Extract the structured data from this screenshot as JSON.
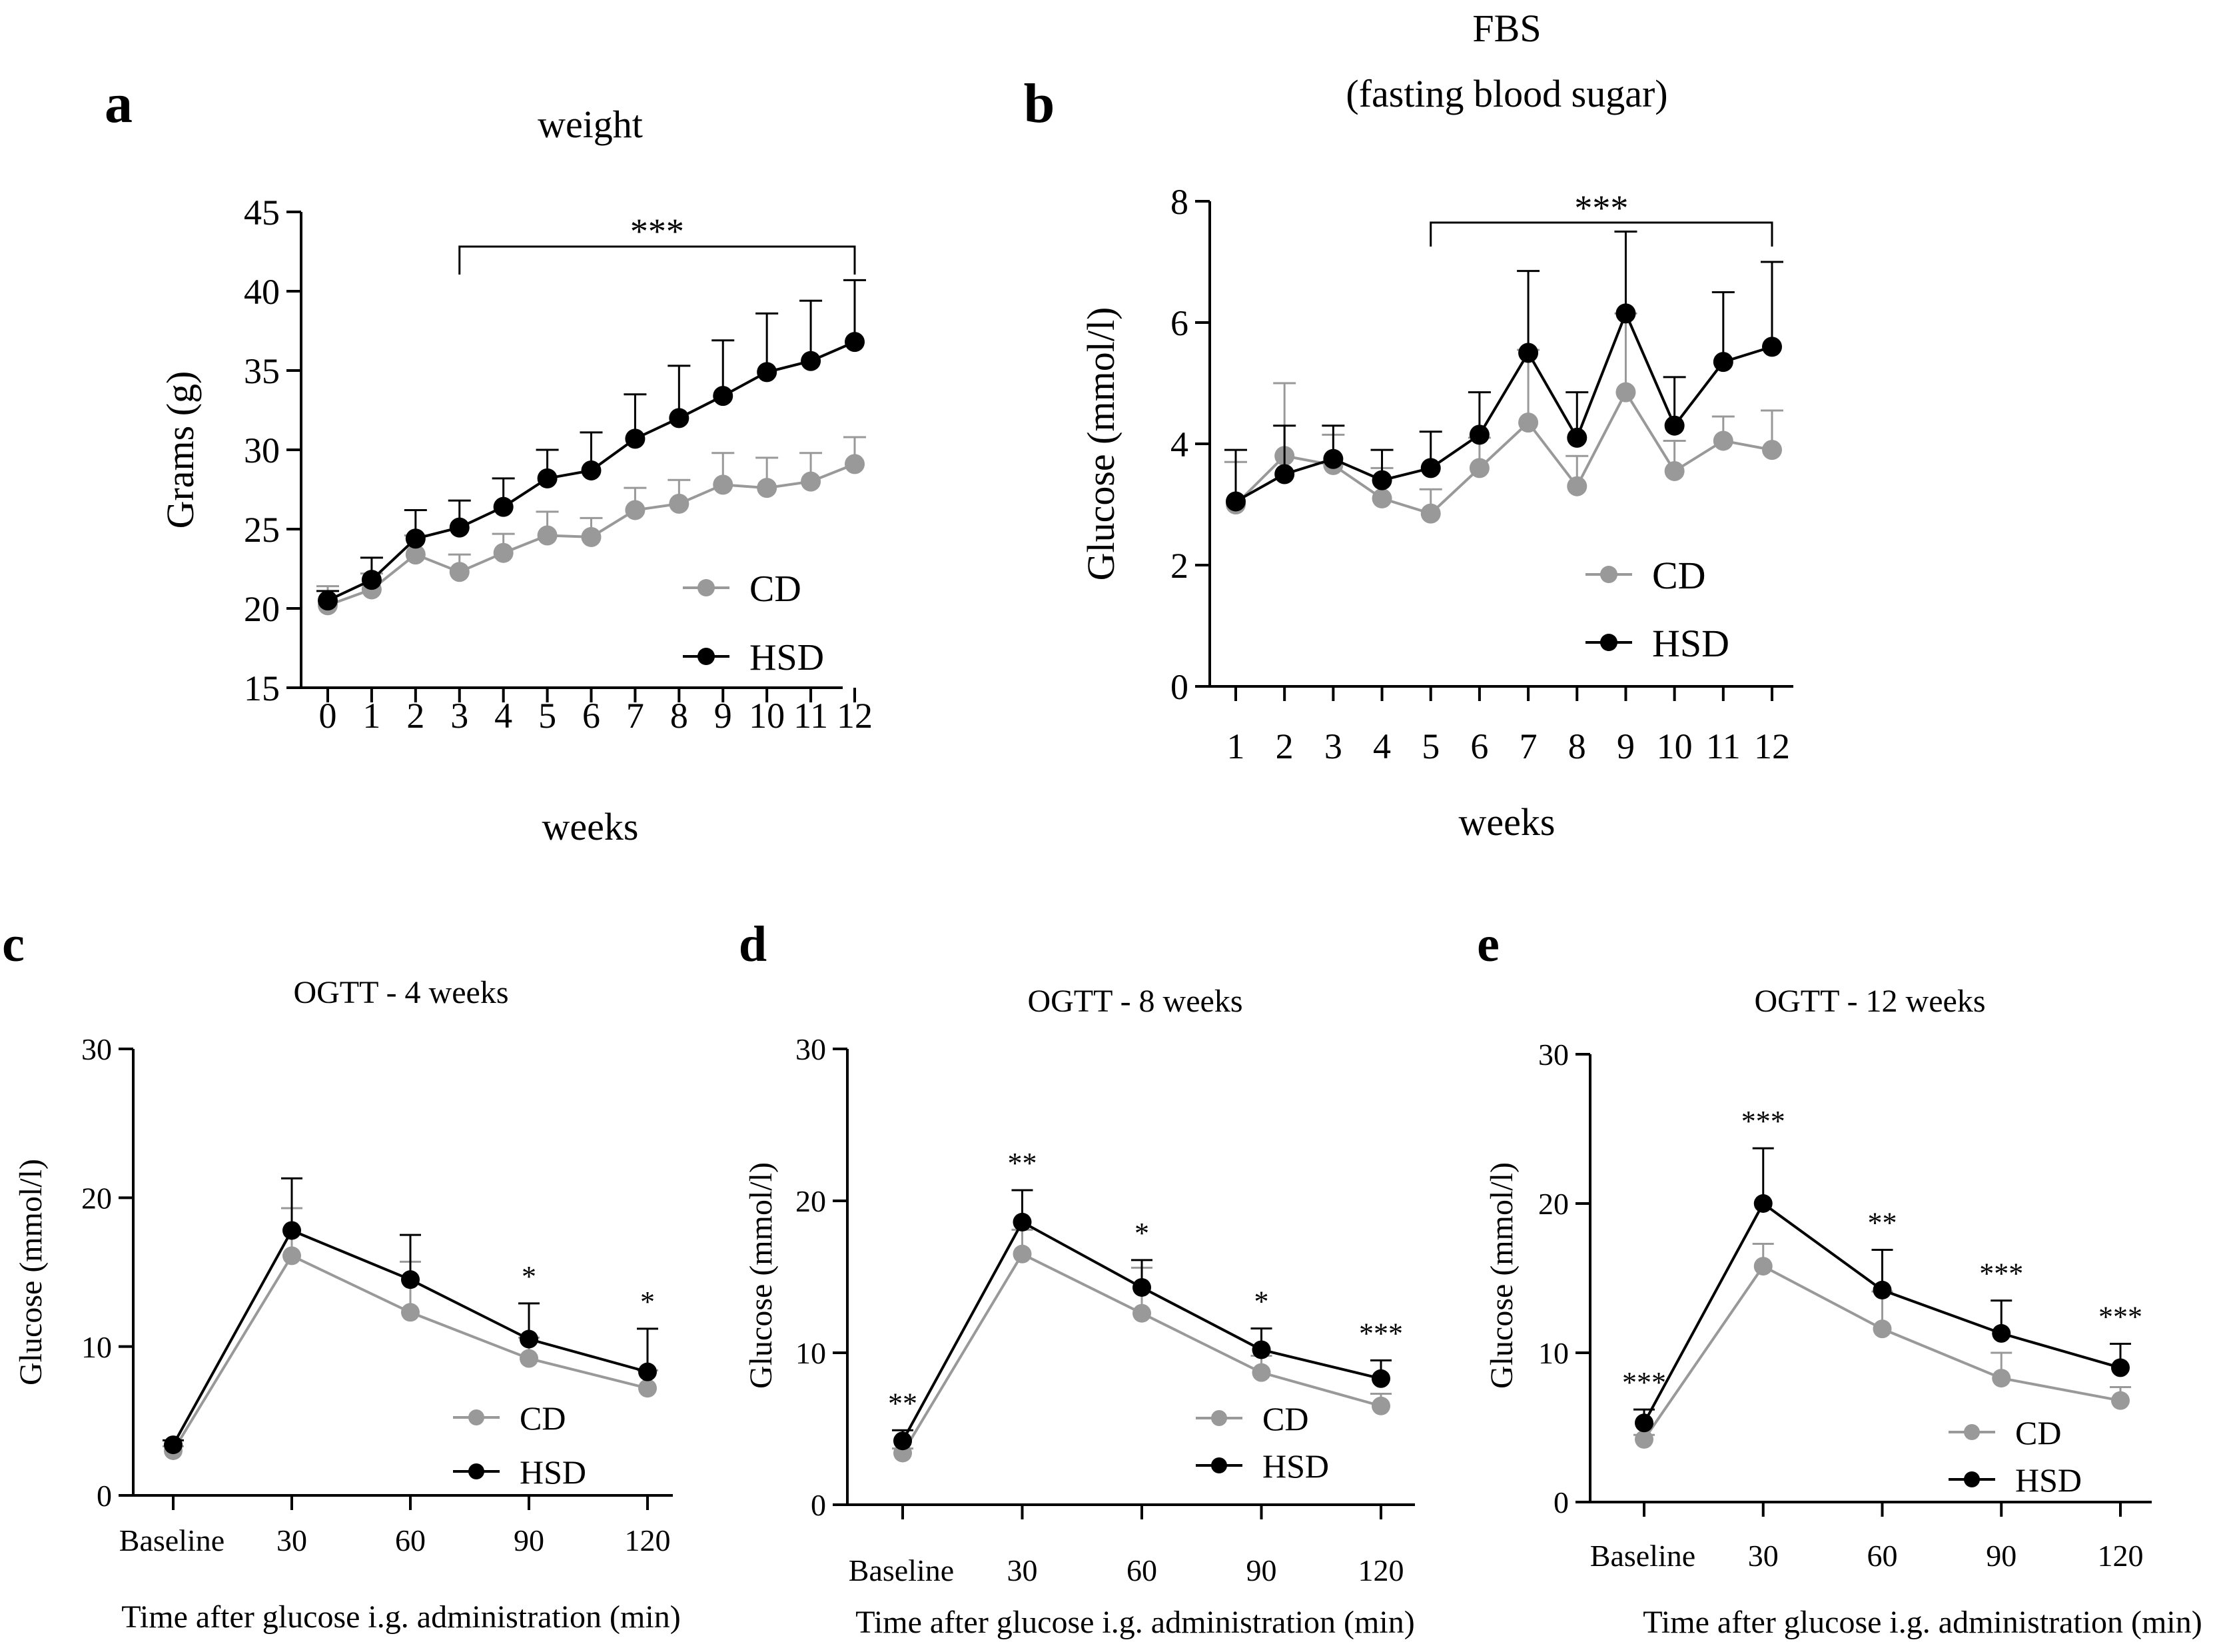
{
  "colors": {
    "cd": "#999999",
    "hsd": "#000000",
    "axis": "#000000"
  },
  "chart_data": [
    {
      "panel": "a",
      "type": "line",
      "title": "weight",
      "xlabel": "weeks",
      "ylabel": "Grams (g)",
      "ylim": [
        15,
        45
      ],
      "yticks": [
        15,
        20,
        25,
        30,
        35,
        40,
        45
      ],
      "categories": [
        "0",
        "1",
        "2",
        "3",
        "4",
        "5",
        "6",
        "7",
        "8",
        "9",
        "10",
        "11",
        "12"
      ],
      "legend": {
        "position": "bottom-right",
        "entries": [
          "CD",
          "HSD"
        ]
      },
      "significance": [
        {
          "label": "***",
          "from": "3",
          "to": "12"
        }
      ],
      "series": [
        {
          "name": "CD",
          "values": [
            20.2,
            21.2,
            23.4,
            22.3,
            23.5,
            24.6,
            24.5,
            26.2,
            26.6,
            27.8,
            27.6,
            28.0,
            29.1
          ],
          "errors": [
            1.2,
            1.0,
            1.2,
            1.1,
            1.2,
            1.5,
            1.2,
            1.4,
            1.5,
            2.0,
            1.9,
            1.8,
            1.7
          ]
        },
        {
          "name": "HSD",
          "values": [
            20.5,
            21.8,
            24.4,
            25.1,
            26.4,
            28.2,
            28.7,
            30.7,
            32.0,
            33.4,
            34.9,
            35.6,
            36.8
          ],
          "errors": [
            0.6,
            1.4,
            1.8,
            1.7,
            1.8,
            1.8,
            2.4,
            2.8,
            3.3,
            3.5,
            3.7,
            3.8,
            3.9
          ]
        }
      ]
    },
    {
      "panel": "b",
      "type": "line",
      "title": "FBS",
      "subtitle": "(fasting blood sugar)",
      "xlabel": "weeks",
      "ylabel": "Glucose (mmol/l)",
      "ylim": [
        0,
        8
      ],
      "yticks": [
        0,
        2,
        4,
        6,
        8
      ],
      "categories": [
        "1",
        "2",
        "3",
        "4",
        "5",
        "6",
        "7",
        "8",
        "9",
        "10",
        "11",
        "12"
      ],
      "legend": {
        "position": "bottom-right",
        "entries": [
          "CD",
          "HSD"
        ]
      },
      "significance": [
        {
          "label": "***",
          "from": "5",
          "to": "12"
        }
      ],
      "series": [
        {
          "name": "CD",
          "values": [
            3.0,
            3.8,
            3.65,
            3.1,
            2.85,
            3.6,
            4.35,
            3.3,
            4.85,
            3.55,
            4.05,
            3.9
          ],
          "errors": [
            0.7,
            1.2,
            0.5,
            0.5,
            0.4,
            0.5,
            1.2,
            0.5,
            1.3,
            0.5,
            0.4,
            0.65
          ]
        },
        {
          "name": "HSD",
          "values": [
            3.05,
            3.5,
            3.75,
            3.4,
            3.6,
            4.15,
            5.5,
            4.1,
            6.15,
            4.3,
            5.35,
            5.6
          ],
          "errors": [
            0.85,
            0.8,
            0.55,
            0.5,
            0.6,
            0.7,
            1.35,
            0.75,
            1.35,
            0.8,
            1.15,
            1.4
          ]
        }
      ]
    },
    {
      "panel": "c",
      "type": "line",
      "title": "OGTT - 4 weeks",
      "xlabel": "Time after glucose i.g. administration (min)",
      "ylabel": "Glucose (mmol/l)",
      "ylim": [
        0,
        30
      ],
      "yticks": [
        0,
        10,
        20,
        30
      ],
      "categories": [
        "Baseline",
        "30",
        "60",
        "90",
        "120"
      ],
      "legend": {
        "position": "bottom-right",
        "entries": [
          "CD",
          "HSD"
        ]
      },
      "annotations": [
        "",
        "",
        "",
        "*",
        "*"
      ],
      "series": [
        {
          "name": "CD",
          "values": [
            3.0,
            16.1,
            12.3,
            9.2,
            7.2
          ],
          "errors": [
            0.3,
            3.2,
            3.4,
            1.4,
            1.2
          ]
        },
        {
          "name": "HSD",
          "values": [
            3.4,
            17.8,
            14.5,
            10.5,
            8.3
          ],
          "errors": [
            0.3,
            3.5,
            3.0,
            2.4,
            2.9
          ]
        }
      ]
    },
    {
      "panel": "d",
      "type": "line",
      "title": "OGTT - 8 weeks",
      "xlabel": "Time after glucose i.g. administration (min)",
      "ylabel": "Glucose (mmol/l)",
      "ylim": [
        0,
        30
      ],
      "yticks": [
        0,
        10,
        20,
        30
      ],
      "categories": [
        "Baseline",
        "30",
        "60",
        "90",
        "120"
      ],
      "legend": {
        "position": "bottom-right",
        "entries": [
          "CD",
          "HSD"
        ]
      },
      "annotations": [
        "**",
        "**",
        "*",
        "*",
        "***"
      ],
      "series": [
        {
          "name": "CD",
          "values": [
            3.4,
            16.5,
            12.6,
            8.7,
            6.5
          ],
          "errors": [
            0.3,
            1.6,
            3.0,
            1.1,
            0.8
          ]
        },
        {
          "name": "HSD",
          "values": [
            4.2,
            18.6,
            14.3,
            10.2,
            8.3
          ],
          "errors": [
            0.7,
            2.1,
            1.8,
            1.4,
            1.2
          ]
        }
      ]
    },
    {
      "panel": "e",
      "type": "line",
      "title": "OGTT - 12 weeks",
      "xlabel": "Time after glucose i.g. administration (min)",
      "ylabel": "Glucose (mmol/l)",
      "ylim": [
        0,
        30
      ],
      "yticks": [
        0,
        10,
        20,
        30
      ],
      "categories": [
        "Baseline",
        "30",
        "60",
        "90",
        "120"
      ],
      "legend": {
        "position": "bottom-right",
        "entries": [
          "CD",
          "HSD"
        ]
      },
      "annotations": [
        "***",
        "***",
        "**",
        "***",
        "***"
      ],
      "series": [
        {
          "name": "CD",
          "values": [
            4.2,
            15.8,
            11.6,
            8.3,
            6.8
          ],
          "errors": [
            0.3,
            1.5,
            2.5,
            1.7,
            0.9
          ]
        },
        {
          "name": "HSD",
          "values": [
            5.3,
            20.0,
            14.2,
            11.3,
            9.0
          ],
          "errors": [
            0.9,
            3.7,
            2.7,
            2.2,
            1.6
          ]
        }
      ]
    }
  ]
}
